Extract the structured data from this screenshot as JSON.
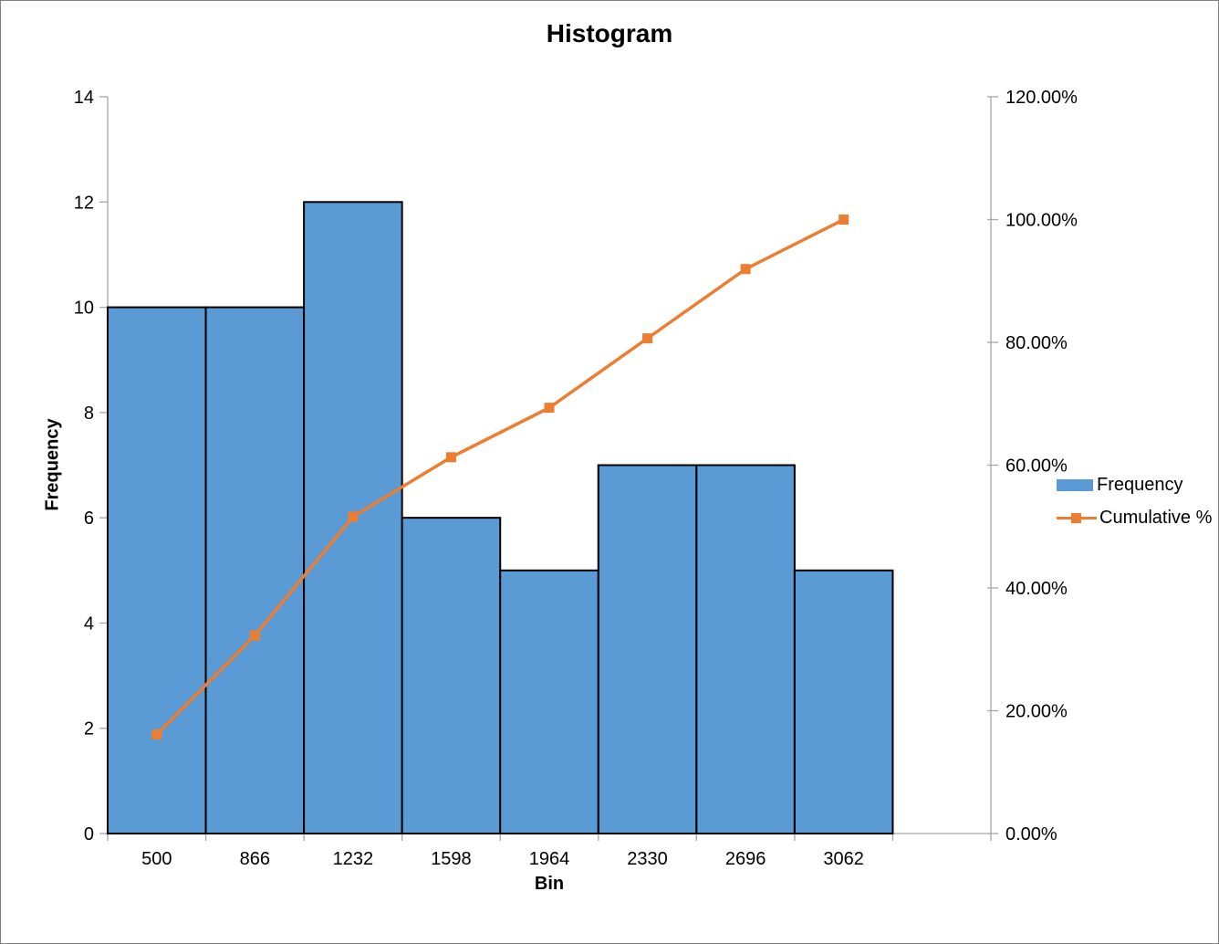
{
  "window": {
    "background": "#ffffff",
    "border_color": "#808080"
  },
  "colors": {
    "bar_fill": "#5B9BD5",
    "bar_border": "#000000",
    "line": "#ED7D31",
    "axis": "#A6A6A6",
    "text": "#000000"
  },
  "chart_data": {
    "type": "bar",
    "subtype": "pareto-histogram (bar + cumulative line combo)",
    "title": "Histogram",
    "xlabel": "Bin",
    "ylabel_left": "Frequency",
    "categories": [
      "500",
      "866",
      "1232",
      "1598",
      "1964",
      "2330",
      "2696",
      "3062"
    ],
    "series": [
      {
        "name": "Frequency",
        "type": "bar",
        "axis": "left",
        "values": [
          10,
          10,
          12,
          6,
          5,
          7,
          7,
          5
        ]
      },
      {
        "name": "Cumulative %",
        "type": "line",
        "axis": "right",
        "values_pct": [
          16.13,
          32.26,
          51.61,
          61.29,
          69.35,
          80.65,
          91.94,
          100.0
        ]
      }
    ],
    "y_left": {
      "min": 0,
      "max": 14,
      "ticks": [
        0,
        2,
        4,
        6,
        8,
        10,
        12,
        14
      ]
    },
    "y_right": {
      "min": 0,
      "max": 120,
      "tick_values": [
        0,
        20,
        40,
        60,
        80,
        100,
        120
      ],
      "tick_labels": [
        "0.00%",
        "20.00%",
        "40.00%",
        "60.00%",
        "80.00%",
        "100.00%",
        "120.00%"
      ]
    },
    "grid": false,
    "bar_gap": 0,
    "extra_empty_slots": 1,
    "legend_position": "right"
  }
}
